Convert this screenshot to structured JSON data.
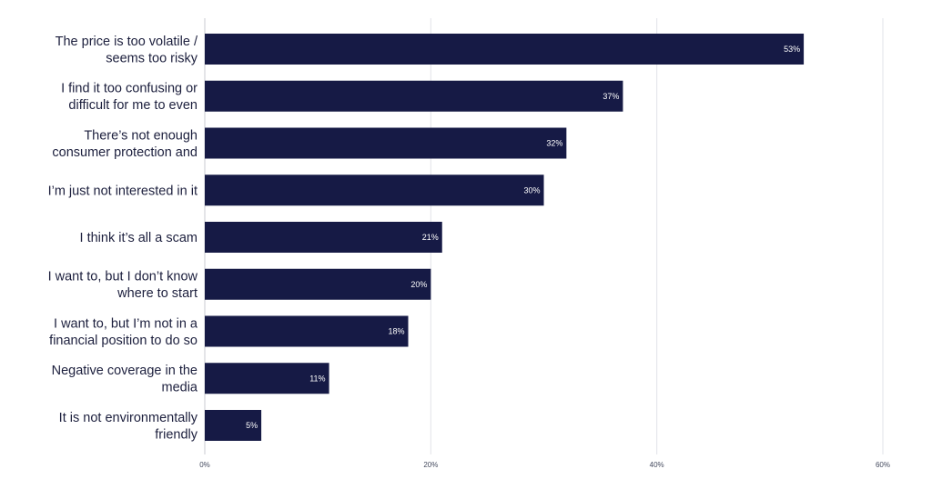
{
  "chart_data": {
    "type": "bar",
    "orientation": "horizontal",
    "title": "",
    "xlabel": "",
    "ylabel": "",
    "categories": [
      [
        "The price is too volatile /",
        "seems too risky"
      ],
      [
        "I find it too confusing or",
        "difficult for me to even"
      ],
      [
        "There’s not enough",
        "consumer protection and"
      ],
      [
        "I’m just not interested in it"
      ],
      [
        "I think it’s all a scam"
      ],
      [
        "I want to, but I don’t know",
        "where to start"
      ],
      [
        "I want to, but I’m not in a",
        "financial position to do so"
      ],
      [
        "Negative coverage in the",
        "media"
      ],
      [
        "It is not environmentally",
        "friendly"
      ]
    ],
    "values": [
      53,
      37,
      32,
      30,
      21,
      20,
      18,
      11,
      5
    ],
    "value_labels": [
      "53%",
      "37%",
      "32%",
      "30%",
      "21%",
      "20%",
      "18%",
      "11%",
      "5%"
    ],
    "xlim": [
      0,
      60
    ],
    "x_ticks": [
      0,
      20,
      40,
      60
    ],
    "x_tick_labels": [
      "0%",
      "20%",
      "40%",
      "60%"
    ],
    "grid": true,
    "legend": "none",
    "bar_color": "#161a45"
  }
}
